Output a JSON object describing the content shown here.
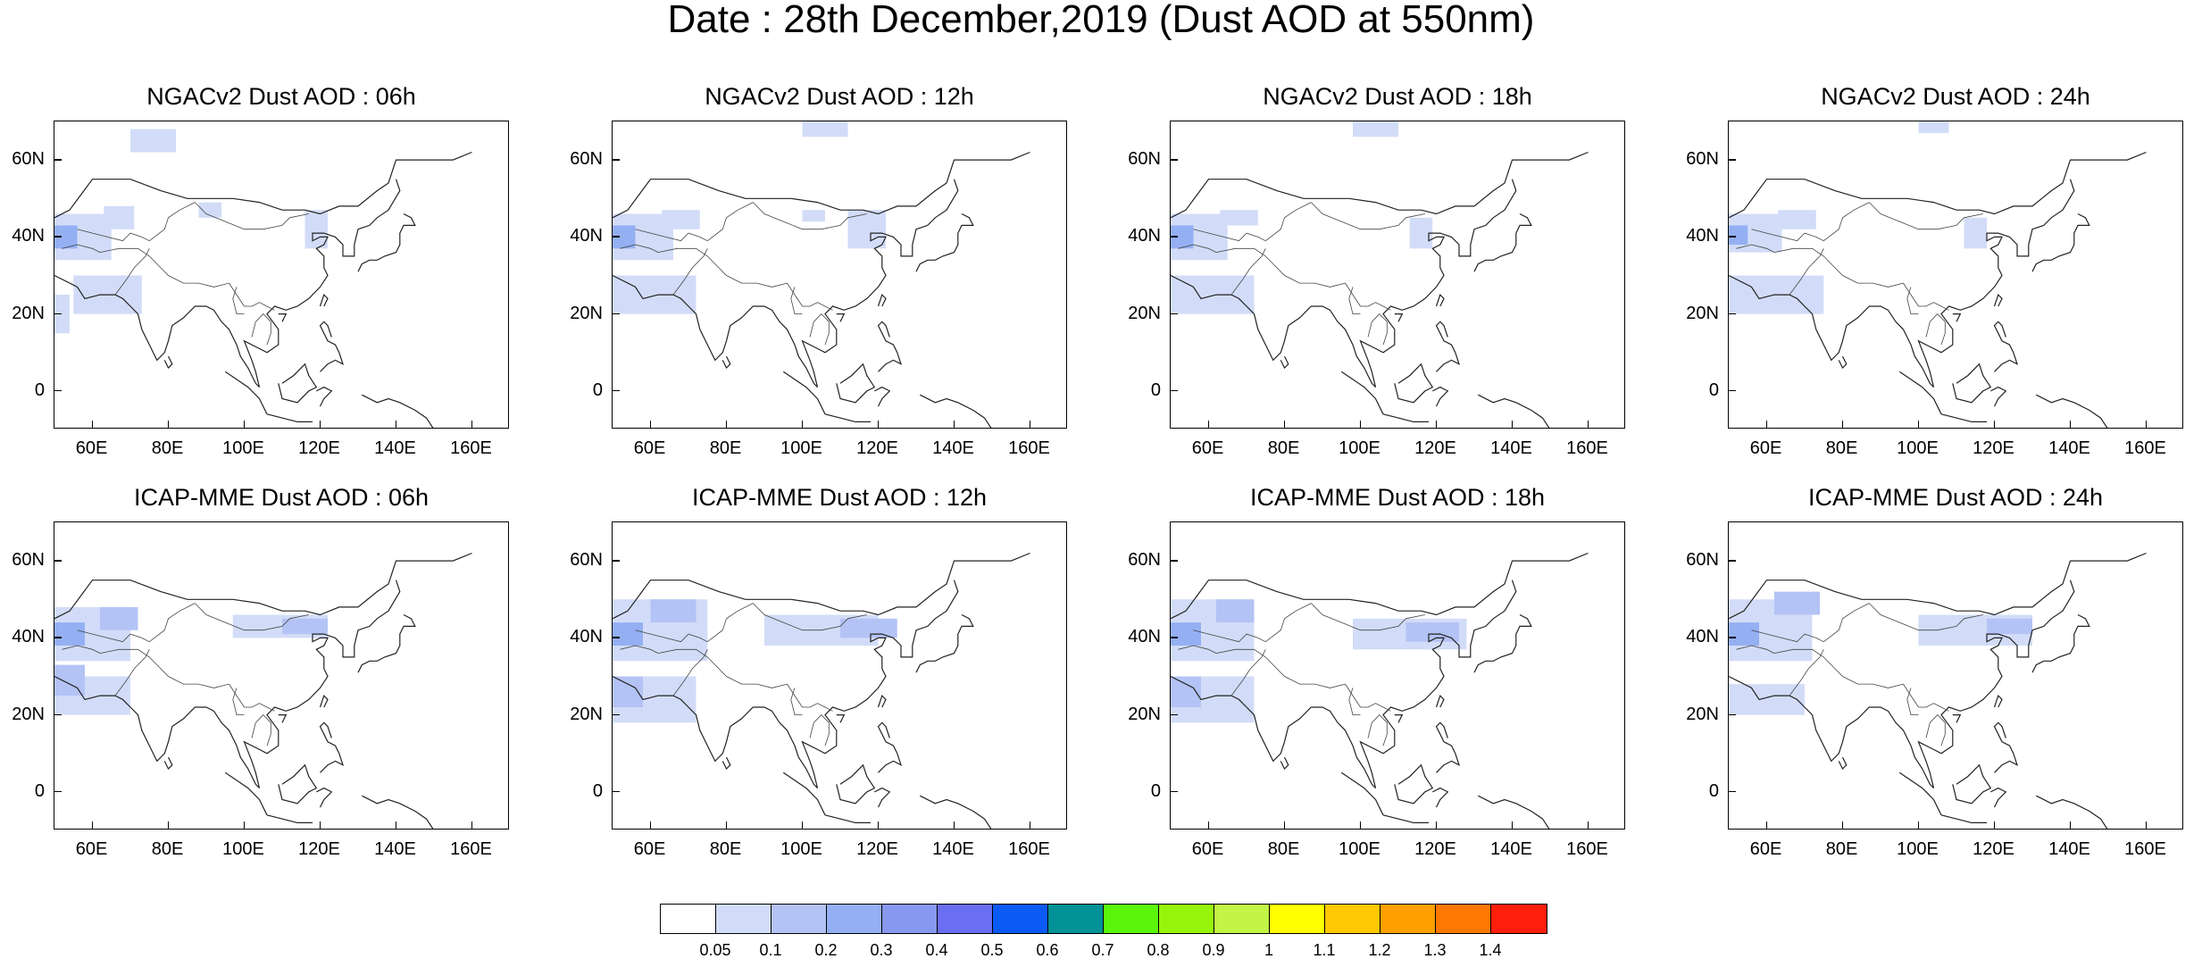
{
  "title": "Date : 28th December,2019 (Dust AOD at 550nm)",
  "panels": [
    {
      "id": "ngac-06",
      "title": "NGACv2 Dust AOD : 06h",
      "row": 0,
      "col": 0
    },
    {
      "id": "ngac-12",
      "title": "NGACv2 Dust AOD : 12h",
      "row": 0,
      "col": 1
    },
    {
      "id": "ngac-18",
      "title": "NGACv2 Dust AOD : 18h",
      "row": 0,
      "col": 2
    },
    {
      "id": "ngac-24",
      "title": "NGACv2 Dust AOD : 24h",
      "row": 0,
      "col": 3
    },
    {
      "id": "icap-06",
      "title": "ICAP-MME Dust AOD : 06h",
      "row": 1,
      "col": 0
    },
    {
      "id": "icap-12",
      "title": "ICAP-MME Dust AOD : 12h",
      "row": 1,
      "col": 1
    },
    {
      "id": "icap-18",
      "title": "ICAP-MME Dust AOD : 18h",
      "row": 1,
      "col": 2
    },
    {
      "id": "icap-24",
      "title": "ICAP-MME Dust AOD : 24h",
      "row": 1,
      "col": 3
    }
  ],
  "axes": {
    "lat_ticks": [
      "60N",
      "40N",
      "20N",
      "0"
    ],
    "lon_ticks": [
      "60E",
      "80E",
      "100E",
      "120E",
      "140E",
      "160E"
    ],
    "lat_values": [
      60,
      40,
      20,
      0
    ],
    "lon_values": [
      60,
      80,
      100,
      120,
      140,
      160
    ],
    "lon_range": [
      50,
      170
    ],
    "lat_range": [
      -10,
      70
    ]
  },
  "colorbar": {
    "labels": [
      "0.05",
      "0.1",
      "0.2",
      "0.3",
      "0.4",
      "0.5",
      "0.6",
      "0.7",
      "0.8",
      "0.9",
      "1",
      "1.1",
      "1.2",
      "1.3",
      "1.4"
    ],
    "colors": [
      "#ffffff",
      "#d2dcf8",
      "#b4c3f5",
      "#94b0f2",
      "#8898f0",
      "#6a6ef0",
      "#0a5af5",
      "#009296",
      "#5af50a",
      "#96f50a",
      "#c3f546",
      "#ffff00",
      "#ffc800",
      "#ffa000",
      "#ff7800",
      "#ff1e0a"
    ]
  }
}
